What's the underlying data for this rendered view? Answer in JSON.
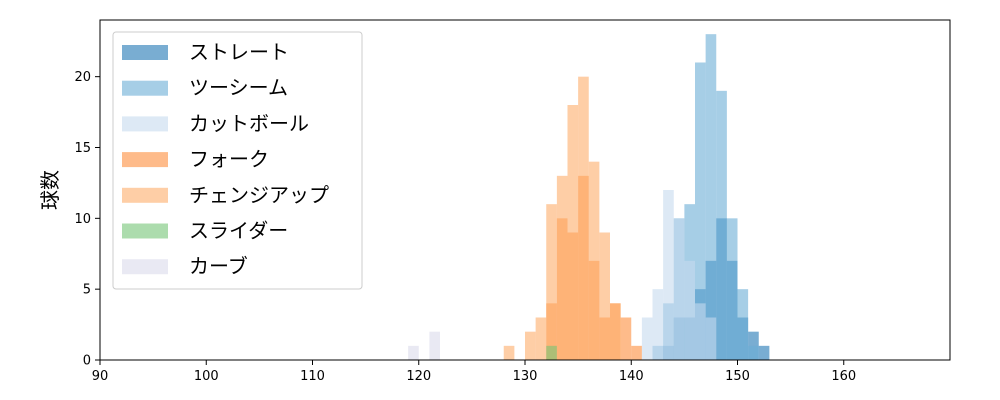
{
  "chart_data": {
    "type": "bar",
    "subtype": "histogram",
    "xlabel": "",
    "ylabel": "球数",
    "xlim": [
      90,
      170
    ],
    "ylim": [
      0,
      24
    ],
    "x_ticks": [
      90,
      100,
      110,
      120,
      130,
      140,
      150,
      160
    ],
    "y_ticks": [
      0,
      5,
      10,
      15,
      20
    ],
    "bin_width": 1,
    "legend_position": "upper-left",
    "grid": false,
    "series": [
      {
        "name": "ストレート",
        "color": "#1f77b4",
        "alpha": 0.6,
        "bins": [
          [
            143,
            1
          ],
          [
            144,
            3
          ],
          [
            145,
            3
          ],
          [
            146,
            5
          ],
          [
            147,
            7
          ],
          [
            148,
            10
          ],
          [
            149,
            7
          ],
          [
            150,
            3
          ],
          [
            151,
            2
          ],
          [
            152,
            1
          ]
        ]
      },
      {
        "name": "ツーシーム",
        "color": "#6baed6",
        "alpha": 0.6,
        "bins": [
          [
            142,
            1
          ],
          [
            143,
            4
          ],
          [
            144,
            10
          ],
          [
            145,
            11
          ],
          [
            146,
            21
          ],
          [
            147,
            23
          ],
          [
            148,
            19
          ],
          [
            149,
            10
          ],
          [
            150,
            5
          ],
          [
            151,
            1
          ]
        ]
      },
      {
        "name": "カットボール",
        "color": "#c6dbef",
        "alpha": 0.6,
        "bins": [
          [
            141,
            3
          ],
          [
            142,
            5
          ],
          [
            143,
            12
          ],
          [
            144,
            10
          ],
          [
            145,
            7
          ],
          [
            146,
            4
          ],
          [
            147,
            3
          ]
        ]
      },
      {
        "name": "フォーク",
        "color": "#fd8d3c",
        "alpha": 0.6,
        "bins": [
          [
            132,
            4
          ],
          [
            133,
            10
          ],
          [
            134,
            9
          ],
          [
            135,
            13
          ],
          [
            136,
            7
          ],
          [
            137,
            3
          ],
          [
            138,
            4
          ],
          [
            139,
            3
          ],
          [
            140,
            1
          ]
        ]
      },
      {
        "name": "チェンジアップ",
        "color": "#fdae6b",
        "alpha": 0.6,
        "bins": [
          [
            128,
            1
          ],
          [
            130,
            2
          ],
          [
            131,
            3
          ],
          [
            132,
            11
          ],
          [
            133,
            13
          ],
          [
            134,
            18
          ],
          [
            135,
            20
          ],
          [
            136,
            14
          ],
          [
            137,
            9
          ],
          [
            138,
            4
          ]
        ]
      },
      {
        "name": "スライダー",
        "color": "#74c476",
        "alpha": 0.6,
        "bins": [
          [
            132,
            1
          ]
        ]
      },
      {
        "name": "カーブ",
        "color": "#dadaeb",
        "alpha": 0.6,
        "bins": [
          [
            119,
            1
          ],
          [
            121,
            2
          ]
        ]
      }
    ]
  }
}
